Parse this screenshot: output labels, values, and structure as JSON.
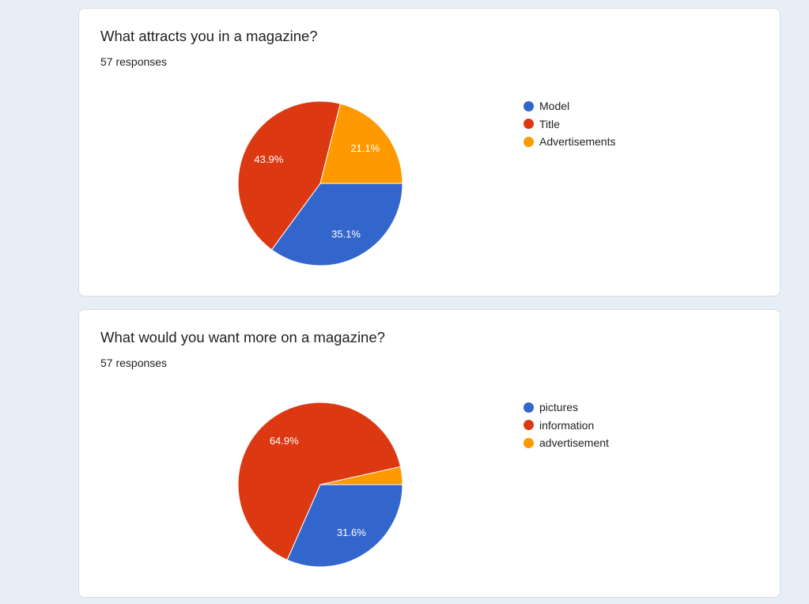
{
  "theme": {
    "page_background": "#e8eef7",
    "card_background": "#ffffff",
    "card_border": "#dadce0",
    "text_color": "#202124",
    "slice_label_color": "#ffffff"
  },
  "chart_data": [
    {
      "type": "pie",
      "title": "What attracts you in a magazine?",
      "subtitle": "57 responses",
      "categories": [
        "Model",
        "Title",
        "Advertisements"
      ],
      "values": [
        35.1,
        43.9,
        21.1
      ],
      "data_labels": [
        "35.1%",
        "43.9%",
        "21.1%"
      ],
      "colors": [
        "#3366cc",
        "#dc3912",
        "#ff9900"
      ],
      "legend": "right"
    },
    {
      "type": "pie",
      "title": "What would you want more on a magazine?",
      "subtitle": "57 responses",
      "categories": [
        "pictures",
        "information",
        "advertisement"
      ],
      "values": [
        31.6,
        64.9,
        3.5
      ],
      "data_labels": [
        "31.6%",
        "64.9%",
        null
      ],
      "colors": [
        "#3366cc",
        "#dc3912",
        "#ff9900"
      ],
      "legend": "right"
    }
  ]
}
